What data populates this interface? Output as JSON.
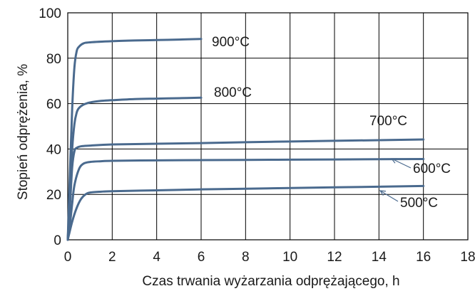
{
  "chart_data": {
    "type": "line",
    "title": "",
    "xlabel": "Czas trwania wyżarzania odprężającego, h",
    "ylabel": "Stopień odprężenia, %",
    "xlim": [
      0,
      18
    ],
    "ylim": [
      0,
      100
    ],
    "x_ticks": [
      "0",
      "2",
      "4",
      "6",
      "8",
      "10",
      "12",
      "14",
      "16",
      "18"
    ],
    "y_ticks": [
      "0",
      "20",
      "40",
      "60",
      "80",
      "100"
    ],
    "grid": true,
    "legend": "none",
    "series_color": "#4a6a8e",
    "series": [
      {
        "name": "900°C",
        "x": [
          0,
          0.1,
          0.2,
          0.3,
          0.4,
          0.5,
          0.7,
          1,
          2,
          3,
          4,
          5,
          6
        ],
        "y": [
          0,
          30,
          58,
          76,
          83,
          85,
          86.5,
          87,
          87.5,
          87.8,
          88,
          88.2,
          88.5
        ]
      },
      {
        "name": "800°C",
        "x": [
          0,
          0.1,
          0.2,
          0.3,
          0.4,
          0.5,
          0.7,
          1,
          1.5,
          2,
          3,
          4,
          5,
          6
        ],
        "y": [
          0,
          20,
          40,
          51,
          56,
          58,
          59.5,
          60.5,
          61.2,
          61.5,
          62,
          62.2,
          62.4,
          62.6
        ]
      },
      {
        "name": "700°C",
        "x": [
          0,
          0.1,
          0.2,
          0.3,
          0.4,
          0.6,
          1,
          2,
          4,
          6,
          8,
          10,
          12,
          14,
          16
        ],
        "y": [
          0,
          15,
          32,
          39,
          40.5,
          41.2,
          41.5,
          42,
          42.3,
          42.6,
          43,
          43.3,
          43.6,
          43.9,
          44.2
        ]
      },
      {
        "name": "600°C",
        "x": [
          0,
          0.1,
          0.2,
          0.3,
          0.5,
          0.7,
          1,
          1.5,
          2,
          4,
          6,
          8,
          10,
          12,
          14,
          16
        ],
        "y": [
          0,
          7,
          16,
          24,
          31,
          33.5,
          34.3,
          34.6,
          34.8,
          35,
          35.1,
          35.2,
          35.3,
          35.4,
          35.5,
          35.6
        ]
      },
      {
        "name": "500°C",
        "x": [
          0,
          0.2,
          0.4,
          0.6,
          0.8,
          1,
          1.5,
          2,
          4,
          6,
          8,
          10,
          12,
          14,
          16
        ],
        "y": [
          0,
          8,
          14,
          18,
          20,
          20.8,
          21.2,
          21.4,
          21.8,
          22.2,
          22.5,
          22.8,
          23.1,
          23.4,
          23.7
        ]
      }
    ]
  }
}
